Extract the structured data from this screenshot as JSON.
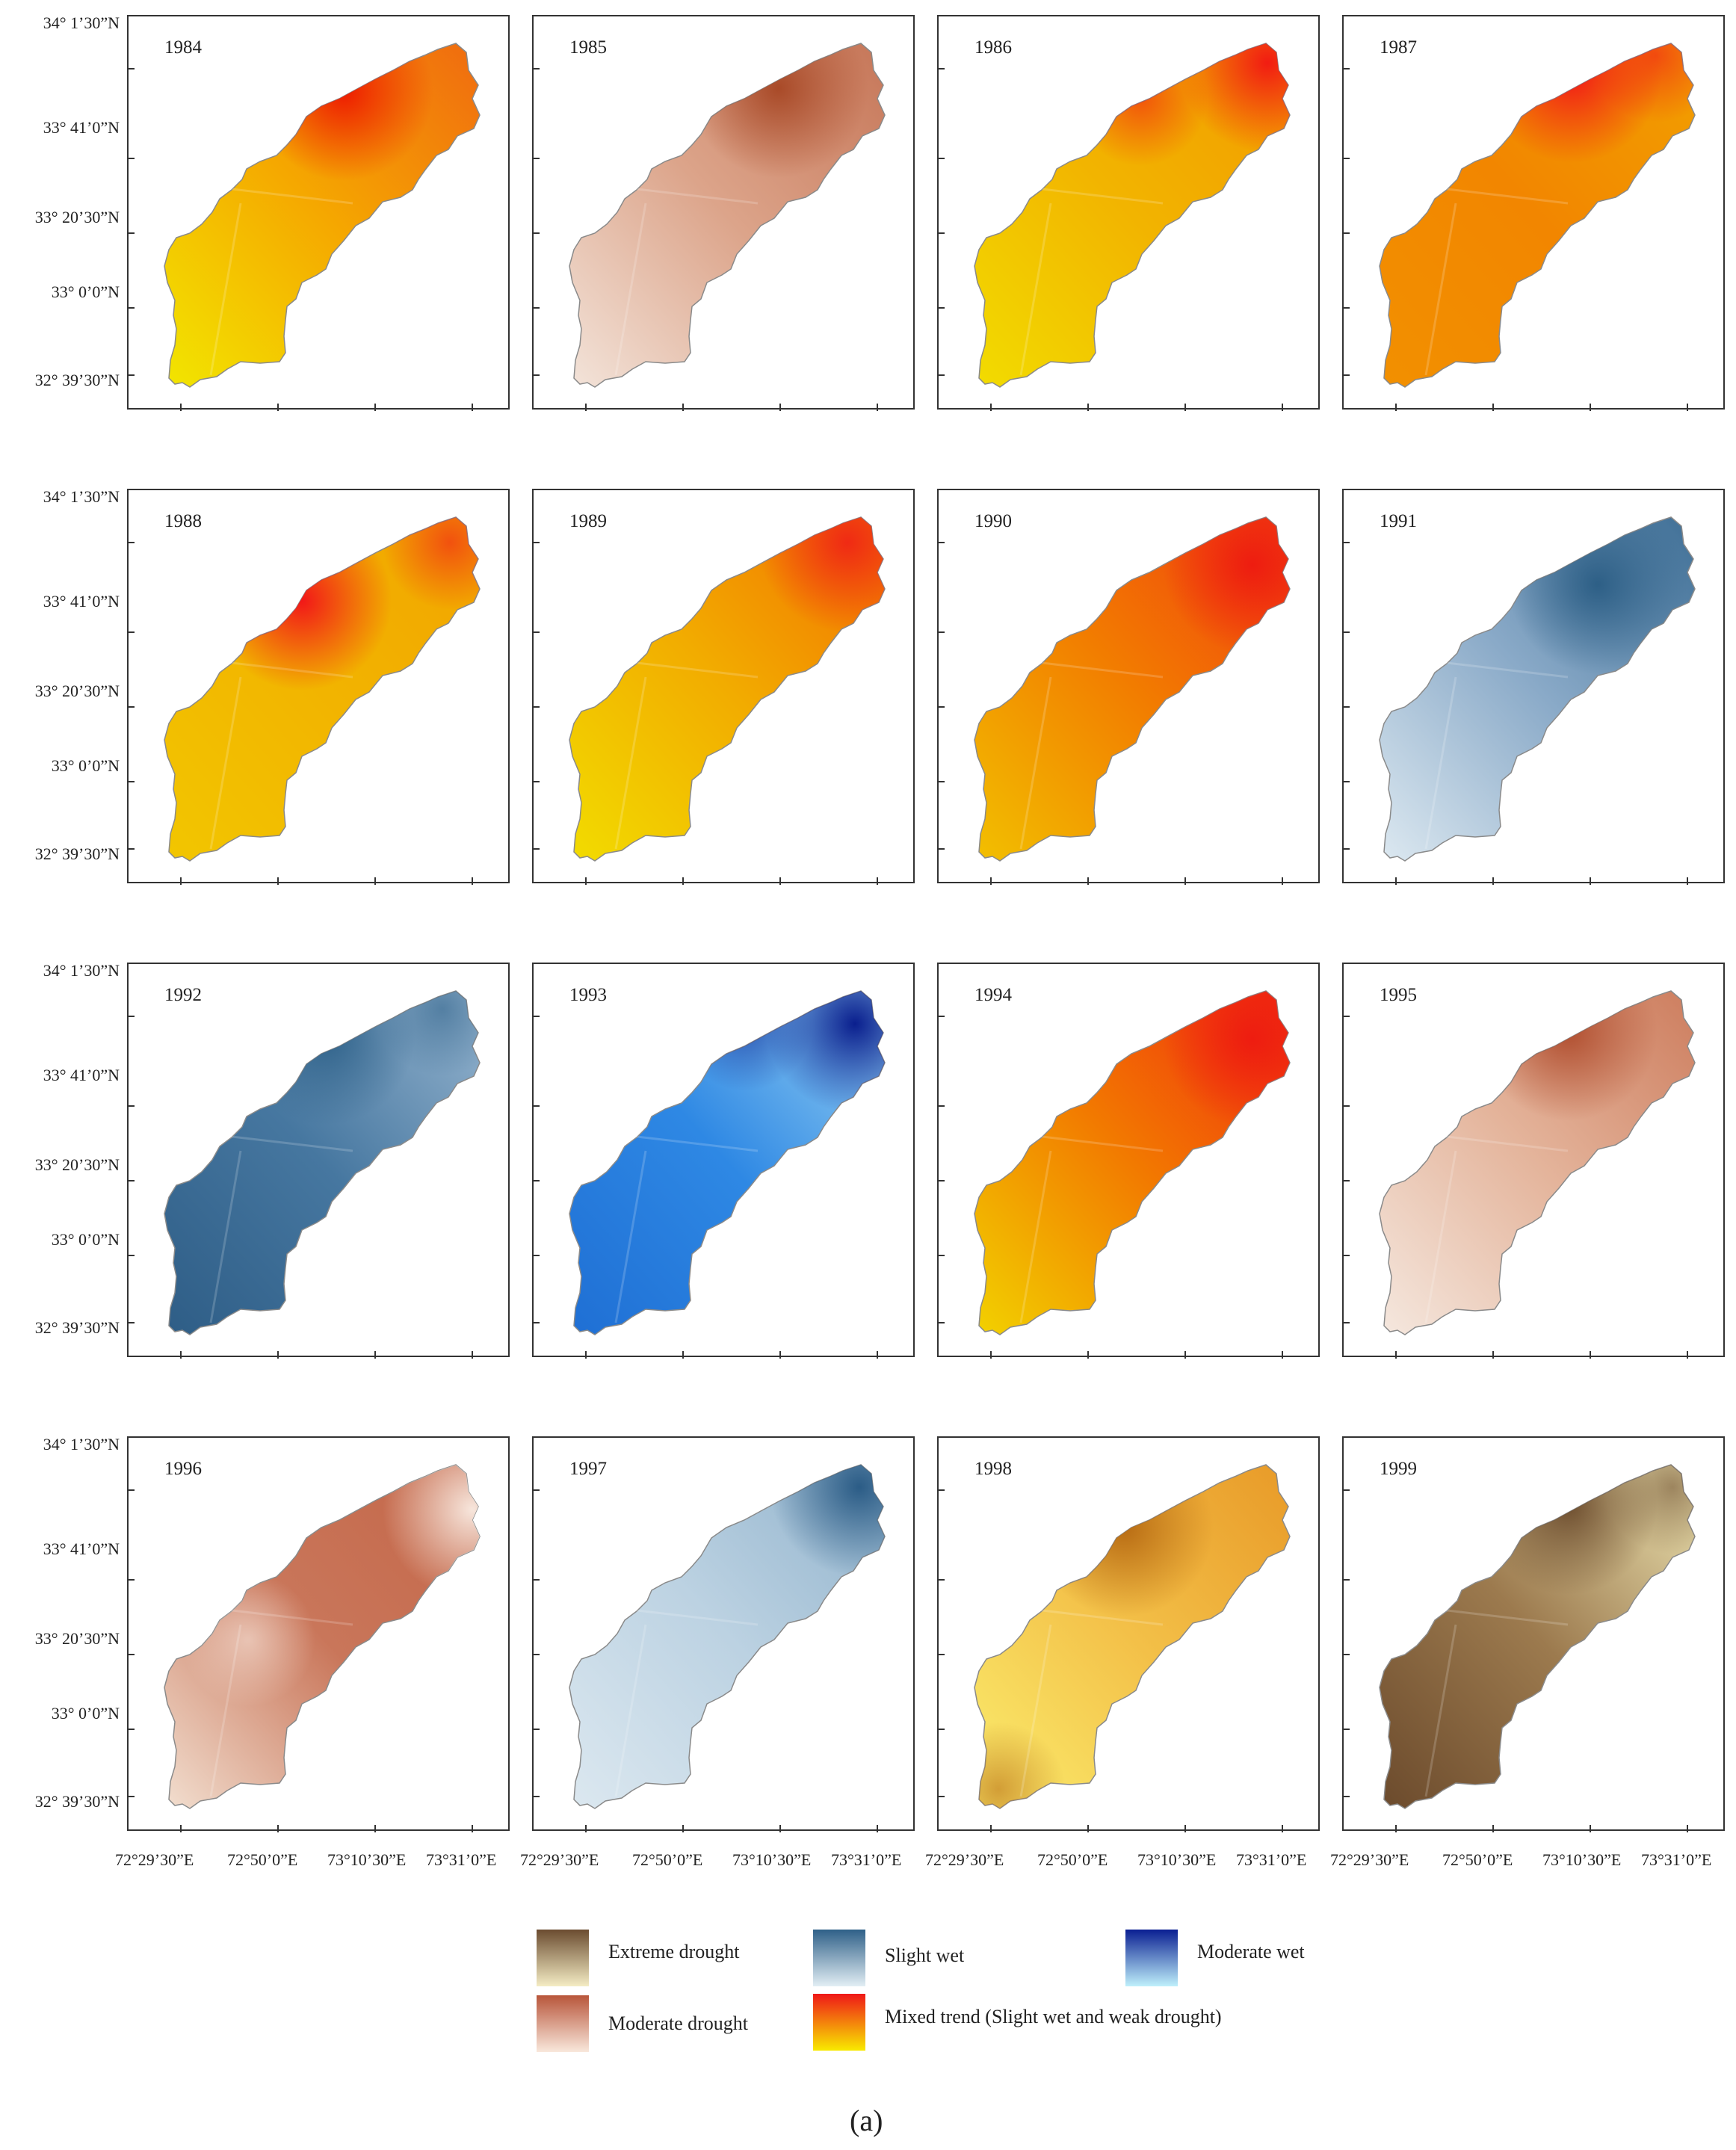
{
  "lat_labels": [
    "34° 1’30”N",
    "33° 41’0”N",
    "33° 20’30”N",
    "33° 0’0”N",
    "32° 39’30”N"
  ],
  "lon_labels": [
    "72°29’30”E",
    "72°50’0”E",
    "73°10’30”E",
    "73°31’0”E"
  ],
  "panels": [
    {
      "year": "1984",
      "fill": "fire",
      "colors": {
        "c1": "#f2e600",
        "c2": "#f5a800",
        "c3": "#f06a10",
        "hot": "#ee1c00"
      }
    },
    {
      "year": "1985",
      "fill": "brown",
      "colors": {
        "c1": "#f3e4da",
        "c2": "#dca48a",
        "c3": "#c67658",
        "hot": "#a94a28"
      }
    },
    {
      "year": "1986",
      "fill": "fire",
      "colors": {
        "c1": "#f2dc00",
        "c2": "#f2b400",
        "c3": "#f39a00",
        "hot": "#f21c12"
      }
    },
    {
      "year": "1987",
      "fill": "fire",
      "colors": {
        "c1": "#f29000",
        "c2": "#f28600",
        "c3": "#f2a000",
        "hot": "#f21818"
      }
    },
    {
      "year": "1988",
      "fill": "fire",
      "colors": {
        "c1": "#f2c600",
        "c2": "#f2b400",
        "c3": "#f2a400",
        "hot": "#f21818"
      }
    },
    {
      "year": "1989",
      "fill": "fire",
      "colors": {
        "c1": "#f2dc00",
        "c2": "#f2ac00",
        "c3": "#f27000",
        "hot": "#f02a14"
      }
    },
    {
      "year": "1990",
      "fill": "fire",
      "colors": {
        "c1": "#f2c000",
        "c2": "#f27d00",
        "c3": "#f03c10",
        "hot": "#ee1c10"
      }
    },
    {
      "year": "1991",
      "fill": "steel",
      "colors": {
        "c1": "#dde9f1",
        "c2": "#8aaac8",
        "c3": "#3f6f96",
        "hot": "#2d5f86"
      }
    },
    {
      "year": "1992",
      "fill": "steel",
      "colors": {
        "c1": "#2e5d86",
        "c2": "#4677a0",
        "c3": "#98b6d0",
        "hot": "#2f628a"
      }
    },
    {
      "year": "1993",
      "fill": "blue",
      "colors": {
        "c1": "#1f6fd4",
        "c2": "#2e88e4",
        "c3": "#9fd6f3",
        "hot": "#0a1f8e"
      }
    },
    {
      "year": "1994",
      "fill": "fire",
      "colors": {
        "c1": "#f2d200",
        "c2": "#f27a00",
        "c3": "#f02a10",
        "hot": "#ee1c10"
      }
    },
    {
      "year": "1995",
      "fill": "brown",
      "colors": {
        "c1": "#f5e8df",
        "c2": "#e4b49b",
        "c3": "#cd7d5e",
        "hot": "#b14f30"
      }
    },
    {
      "year": "1996",
      "fill": "brown",
      "colors": {
        "c1": "#f2dfd0",
        "c2": "#c9765a",
        "c3": "#c46648",
        "hot": "#f7e6dc"
      }
    },
    {
      "year": "1997",
      "fill": "steel",
      "colors": {
        "c1": "#dce8f0",
        "c2": "#bcd2e2",
        "c3": "#8fb1cb",
        "hot": "#2b5c86"
      }
    },
    {
      "year": "1998",
      "fill": "gold",
      "colors": {
        "c1": "#fbee6e",
        "c2": "#f3c048",
        "c3": "#e89a28",
        "hot": "#b86c14"
      }
    },
    {
      "year": "1999",
      "fill": "earth",
      "colors": {
        "c1": "#6b4a2c",
        "c2": "#9c7a4e",
        "c3": "#eee6b4",
        "hot": "#6e4e2f"
      }
    }
  ],
  "legend": [
    {
      "label": "Extreme drought",
      "top": "#6b4c30",
      "bottom": "#f4ecc4"
    },
    {
      "label": "Slight wet",
      "top": "#2f6088",
      "bottom": "#e2eef4"
    },
    {
      "label": "Moderate wet",
      "top": "#0a1f92",
      "bottom": "#bff0fb"
    },
    {
      "label": "Moderate drought",
      "top": "#b8553a",
      "bottom": "#f9e8dc"
    },
    {
      "label": "Mixed trend (Slight wet and weak drought)",
      "top": "#ef1818",
      "bottom": "#f8ea00"
    }
  ],
  "caption": "(a)"
}
